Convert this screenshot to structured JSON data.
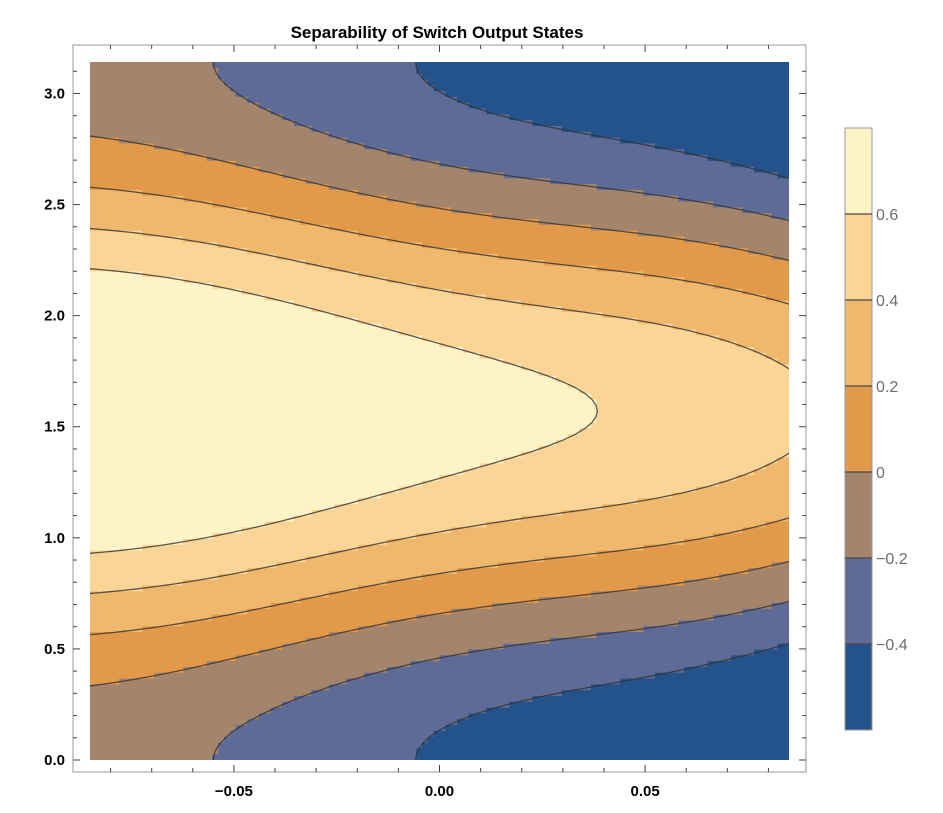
{
  "chart_data": {
    "type": "contour",
    "title": "Separability of Switch Output States",
    "xlabel": "",
    "ylabel": "",
    "xlim": [
      -0.085,
      0.085
    ],
    "ylim": [
      0,
      3.14159
    ],
    "x_ticks": [
      {
        "value": -0.05,
        "label": "-0.05"
      },
      {
        "value": 0.0,
        "label": "0.00"
      },
      {
        "value": 0.05,
        "label": "0.05"
      }
    ],
    "y_ticks": [
      {
        "value": 0.0,
        "label": "0.0"
      },
      {
        "value": 0.5,
        "label": "0.5"
      },
      {
        "value": 1.0,
        "label": "1.0"
      },
      {
        "value": 1.5,
        "label": "1.5"
      },
      {
        "value": 2.0,
        "label": "2.0"
      },
      {
        "value": 2.5,
        "label": "2.5"
      },
      {
        "value": 3.0,
        "label": "3.0"
      }
    ],
    "contour_levels": [
      -0.4,
      -0.2,
      0,
      0.2,
      0.4,
      0.6
    ],
    "level_labels": [
      "-0.4",
      "-0.2",
      "0",
      "0.2",
      "0.4",
      "0.6"
    ],
    "value_range": [
      -0.6,
      0.8
    ],
    "band_colors": [
      "#24528a",
      "#5e6b97",
      "#a4856c",
      "#e29a4a",
      "#f0b86c",
      "#fad596",
      "#fdf3c6"
    ],
    "legend": {
      "position": "right"
    },
    "grid": false,
    "features": {
      "min_value_at": [
        {
          "x": 0.01,
          "y": 0.0
        },
        {
          "x": 0.01,
          "y": 3.14159
        }
      ],
      "max_value_at": [
        {
          "x": -0.085,
          "y": 1.5708
        },
        {
          "x": 0.085,
          "y": 1.5708
        }
      ]
    }
  }
}
